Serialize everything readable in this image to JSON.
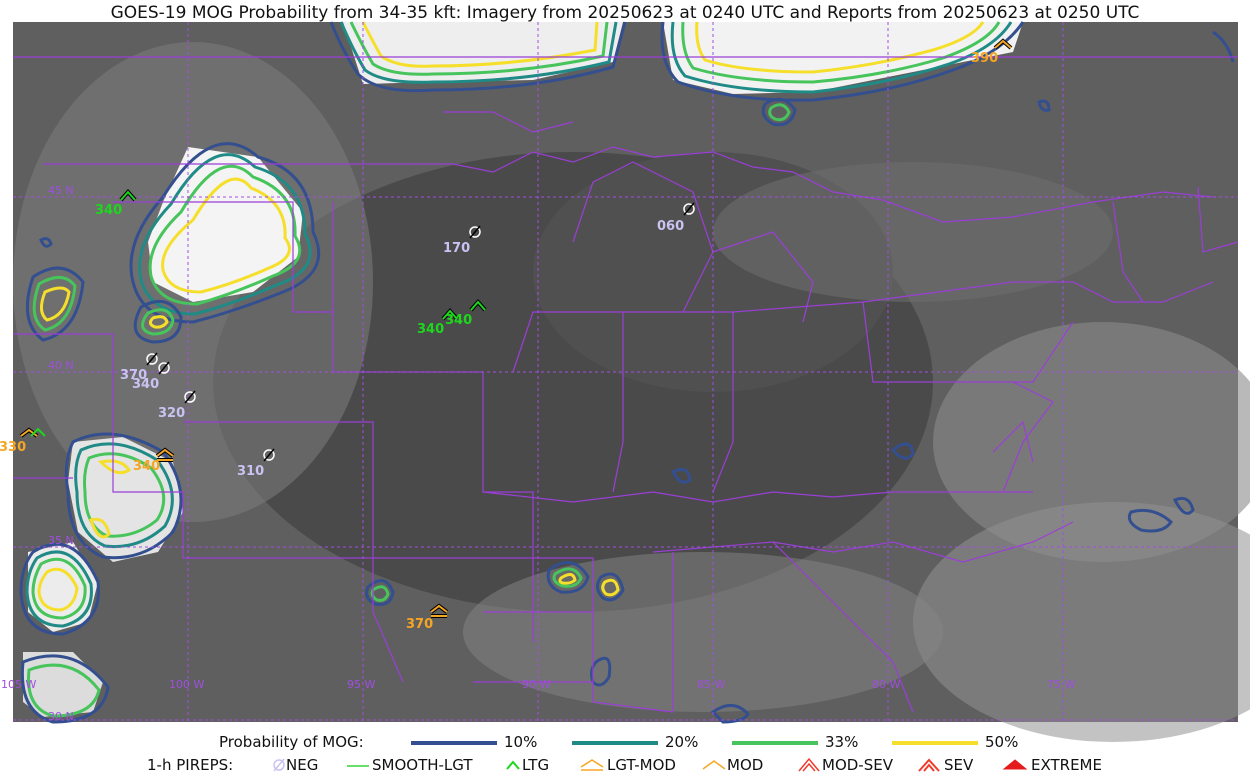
{
  "title": "GOES-19 MOG Probability from 34-35 kft: Imagery from 20250623 at 0240 UTC and Reports from 20250623 at 0250 UTC",
  "colors": {
    "prob_10": "#344f8f",
    "prob_20": "#1f8a86",
    "prob_33": "#47c45c",
    "prob_50": "#f5df2a",
    "boundaries": "#9a3fd6",
    "gridlines": "#a04ee0",
    "neg": "#c9c3f2",
    "smooth_lgt": "#36d636",
    "ltg": "#1dd61d",
    "lgt_mod": "#f5a623",
    "mod": "#f5a623",
    "mod_sev": "#ef3b2c",
    "sev": "#ef3b2c",
    "extreme": "#e41a1c"
  },
  "map": {
    "lon_labels": [
      "105 W",
      "100 W",
      "95 W",
      "90 W",
      "85 W",
      "80 W",
      "75 W"
    ],
    "lat_labels": [
      "45 N",
      "40 N",
      "35 N",
      "30 N"
    ],
    "pireps": [
      {
        "type": "LTG",
        "alt": "340",
        "color": "ltg"
      },
      {
        "type": "NEG",
        "alt": "170",
        "color": "neg"
      },
      {
        "type": "NEG",
        "alt": "060",
        "color": "neg"
      },
      {
        "type": "LTG",
        "alt": "340",
        "color": "ltg"
      },
      {
        "type": "LTG",
        "alt": "340",
        "color": "ltg"
      },
      {
        "type": "NEG",
        "alt": "370",
        "color": "neg"
      },
      {
        "type": "NEG",
        "alt": "340",
        "color": "neg"
      },
      {
        "type": "NEG",
        "alt": "320",
        "color": "neg"
      },
      {
        "type": "NEG",
        "alt": "310",
        "color": "neg"
      },
      {
        "type": "LGT-MOD",
        "alt": "340",
        "color": "lgt_mod"
      },
      {
        "type": "MOD",
        "alt": "330",
        "color": "mod"
      },
      {
        "type": "LGT-MOD",
        "alt": "370",
        "color": "lgt_mod"
      },
      {
        "type": "MOD",
        "alt": "390",
        "color": "mod"
      }
    ]
  },
  "legend": {
    "prob_title": "Probability of MOG:",
    "prob_items": [
      "10%",
      "20%",
      "33%",
      "50%"
    ],
    "pirep_title": "1-h PIREPS:",
    "pirep_items": [
      "NEG",
      "SMOOTH-LGT",
      "LTG",
      "LGT-MOD",
      "MOD",
      "MOD-SEV",
      "SEV",
      "EXTREME"
    ]
  }
}
